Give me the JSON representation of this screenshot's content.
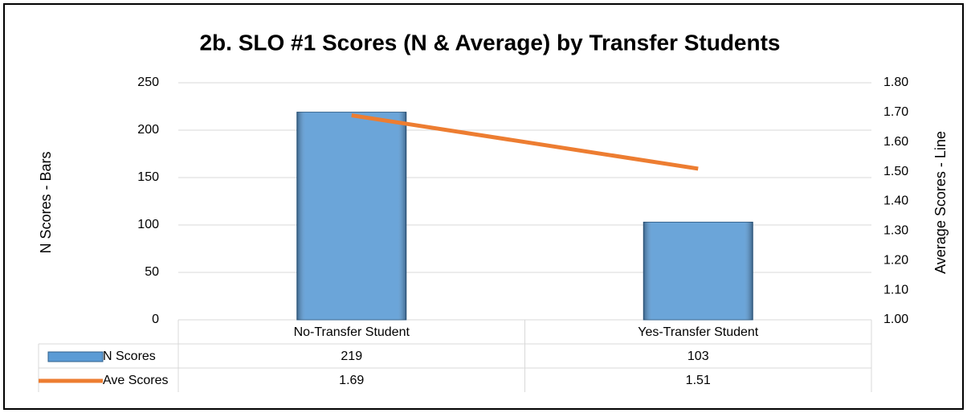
{
  "chart_data": {
    "type": "bar_line",
    "title": "2b. SLO #1 Scores (N & Average) by Transfer Students",
    "ylabel": "N Scores - Bars",
    "y2label": "Average Scores - Line",
    "categories": [
      "No-Transfer Student",
      "Yes-Transfer Student"
    ],
    "series": [
      {
        "name": "N Scores",
        "type": "bar",
        "color": "#5b9bd5",
        "values": [
          219,
          103
        ]
      },
      {
        "name": "Ave Scores",
        "type": "line",
        "color": "#ed7d31",
        "axis": "y2",
        "values": [
          1.69,
          1.51
        ]
      }
    ],
    "ylim": [
      0,
      250
    ],
    "yticks": [
      0,
      50,
      100,
      150,
      200,
      250
    ],
    "y2lim": [
      1,
      1.8
    ],
    "y2ticks": [
      {
        "value": 1,
        "label": "1.00"
      },
      {
        "value": 1.1,
        "label": "1.10"
      },
      {
        "value": 1.2,
        "label": "1.20"
      },
      {
        "value": 1.3,
        "label": "1.30"
      },
      {
        "value": 1.4,
        "label": "1.40"
      },
      {
        "value": 1.5,
        "label": "1.50"
      },
      {
        "value": 1.6,
        "label": "1.60"
      },
      {
        "value": 1.7,
        "label": "1.70"
      },
      {
        "value": 1.8,
        "label": "1.80"
      }
    ],
    "grid": true
  }
}
